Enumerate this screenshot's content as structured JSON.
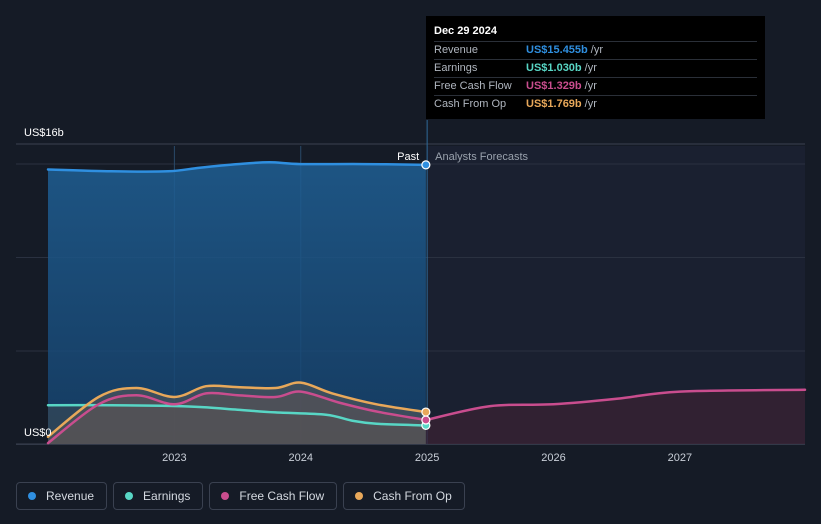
{
  "chart_data": {
    "type": "line",
    "x_range": [
      2022.0,
      2027.99
    ],
    "y_range": [
      0,
      16.5
    ],
    "y_labels": [
      {
        "value": 16,
        "label": "US$16b"
      },
      {
        "value": 0,
        "label": "US$0"
      }
    ],
    "x_ticks": [
      {
        "value": 2023,
        "label": "2023"
      },
      {
        "value": 2024,
        "label": "2024"
      },
      {
        "value": 2025,
        "label": "2025"
      },
      {
        "value": 2026,
        "label": "2026"
      },
      {
        "value": 2027,
        "label": "2027"
      }
    ],
    "past_forecast_split": 2025,
    "past_label": "Past",
    "forecast_label": "Analysts Forecasts",
    "series": [
      {
        "name": "Revenue",
        "color": "#2f8fe0",
        "points": [
          [
            2022.0,
            15.2
          ],
          [
            2022.5,
            15.1
          ],
          [
            2022.95,
            15.1
          ],
          [
            2023.2,
            15.3
          ],
          [
            2023.5,
            15.5
          ],
          [
            2023.75,
            15.6
          ],
          [
            2024.0,
            15.5
          ],
          [
            2024.5,
            15.5
          ],
          [
            2024.99,
            15.455
          ]
        ],
        "forecast": []
      },
      {
        "name": "Earnings",
        "color": "#58d6c5",
        "points": [
          [
            2022.0,
            2.15
          ],
          [
            2022.5,
            2.15
          ],
          [
            2022.9,
            2.12
          ],
          [
            2023.2,
            2.05
          ],
          [
            2023.5,
            1.9
          ],
          [
            2023.8,
            1.75
          ],
          [
            2024.2,
            1.62
          ],
          [
            2024.4,
            1.3
          ],
          [
            2024.6,
            1.12
          ],
          [
            2024.99,
            1.03
          ]
        ],
        "forecast": []
      },
      {
        "name": "Free Cash Flow",
        "color": "#c94d8e",
        "points": [
          [
            2022.0,
            0.05
          ],
          [
            2022.4,
            2.2
          ],
          [
            2022.7,
            2.7
          ],
          [
            2023.0,
            2.2
          ],
          [
            2023.25,
            2.8
          ],
          [
            2023.5,
            2.7
          ],
          [
            2023.8,
            2.6
          ],
          [
            2024.0,
            2.9
          ],
          [
            2024.3,
            2.3
          ],
          [
            2024.6,
            1.8
          ],
          [
            2024.99,
            1.329
          ]
        ],
        "forecast": [
          [
            2024.99,
            1.329
          ],
          [
            2025.5,
            2.1
          ],
          [
            2026.0,
            2.2
          ],
          [
            2026.5,
            2.5
          ],
          [
            2027.0,
            2.9
          ],
          [
            2027.99,
            3.0
          ]
        ]
      },
      {
        "name": "Cash From Op",
        "color": "#e8a85a",
        "points": [
          [
            2022.0,
            0.4
          ],
          [
            2022.4,
            2.6
          ],
          [
            2022.7,
            3.1
          ],
          [
            2023.0,
            2.6
          ],
          [
            2023.25,
            3.2
          ],
          [
            2023.5,
            3.15
          ],
          [
            2023.8,
            3.1
          ],
          [
            2024.0,
            3.4
          ],
          [
            2024.25,
            2.8
          ],
          [
            2024.6,
            2.2
          ],
          [
            2024.99,
            1.769
          ]
        ],
        "forecast": []
      }
    ],
    "tooltip": {
      "date": "Dec 29 2024",
      "rows": [
        {
          "label": "Revenue",
          "value": "US$15.455b",
          "unit": "/yr",
          "color": "#2f8fe0"
        },
        {
          "label": "Earnings",
          "value": "US$1.030b",
          "unit": "/yr",
          "color": "#58d6c5"
        },
        {
          "label": "Free Cash Flow",
          "value": "US$1.329b",
          "unit": "/yr",
          "color": "#c94d8e"
        },
        {
          "label": "Cash From Op",
          "value": "US$1.769b",
          "unit": "/yr",
          "color": "#e8a85a"
        }
      ]
    }
  },
  "legend": [
    {
      "label": "Revenue",
      "color": "#2f8fe0"
    },
    {
      "label": "Earnings",
      "color": "#58d6c5"
    },
    {
      "label": "Free Cash Flow",
      "color": "#c94d8e"
    },
    {
      "label": "Cash From Op",
      "color": "#e8a85a"
    }
  ]
}
